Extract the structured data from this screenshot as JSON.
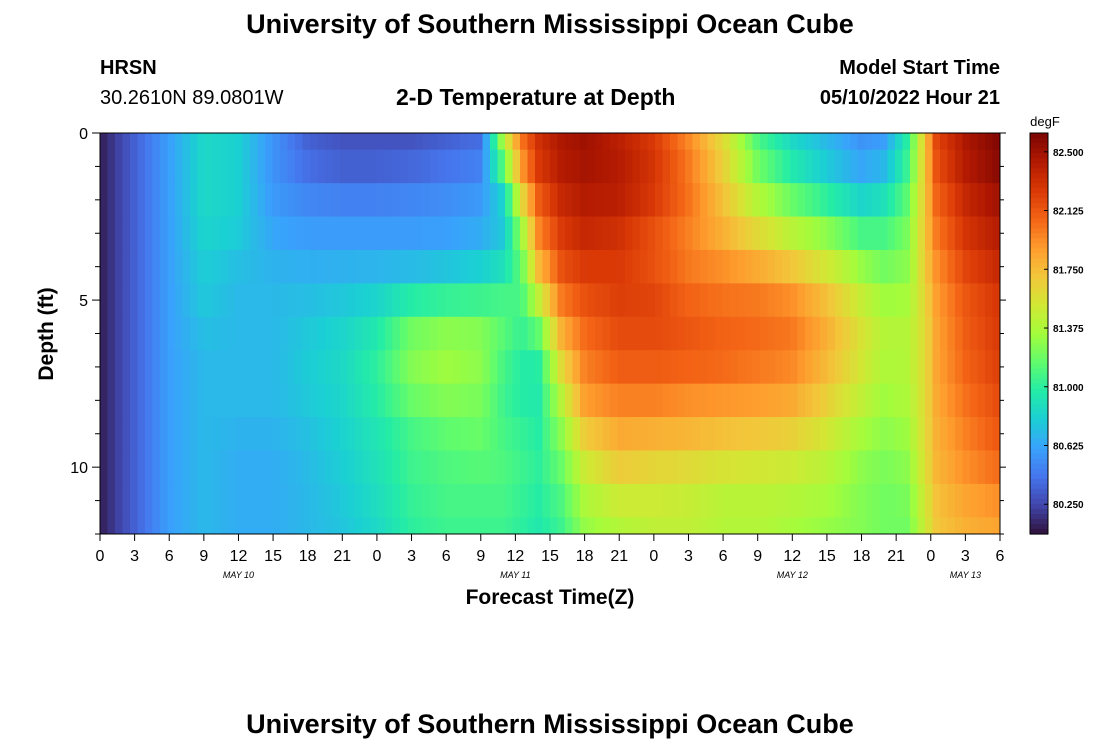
{
  "header": {
    "title": "University of Southern Mississippi Ocean Cube",
    "station": "HRSN",
    "coords": "30.2610N  89.0801W",
    "plot_title": "2-D Temperature at Depth",
    "model_start_label": "Model Start Time",
    "model_start_value": "05/10/2022 Hour 21"
  },
  "footer": {
    "title": "University of Southern Mississippi Ocean Cube"
  },
  "colors": {
    "scale": [
      "#30123b",
      "#4145ab",
      "#4675ed",
      "#39a2fc",
      "#1bcfd4",
      "#24eca6",
      "#61fc6c",
      "#a4fc3b",
      "#d1e834",
      "#f3c63a",
      "#fe9b2d",
      "#f36315",
      "#d93806",
      "#b11901",
      "#7a0402"
    ]
  },
  "chart_data": {
    "type": "heatmap",
    "xlabel": "Forecast Time(Z)",
    "ylabel": "Depth (ft)",
    "x_range_hours": [
      0,
      78
    ],
    "y_range_ft": [
      0,
      12
    ],
    "x_ticks": [
      "0",
      "3",
      "6",
      "9",
      "12",
      "15",
      "18",
      "21",
      "0",
      "3",
      "6",
      "9",
      "12",
      "15",
      "18",
      "21",
      "0",
      "3",
      "6",
      "9",
      "12",
      "15",
      "18",
      "21",
      "0",
      "3",
      "6"
    ],
    "y_ticks": [
      {
        "value": 0,
        "label": "0"
      },
      {
        "value": 5,
        "label": "5"
      },
      {
        "value": 10,
        "label": "10"
      }
    ],
    "date_labels": [
      {
        "hour": 12,
        "label": "MAY 10"
      },
      {
        "hour": 36,
        "label": "MAY 11"
      },
      {
        "hour": 60,
        "label": "MAY 12"
      },
      {
        "hour": 75,
        "label": "MAY 13"
      }
    ],
    "colorbar": {
      "unit": "degF",
      "min": 80.06,
      "max": 82.62,
      "ticks": [
        "82.500",
        "82.125",
        "81.750",
        "81.375",
        "81.000",
        "80.625",
        "80.250"
      ]
    },
    "grid": false,
    "depth_levels_ft": [
      0.0,
      0.5,
      1.5,
      2.5,
      3.5,
      4.5,
      5.5,
      6.5,
      7.5,
      8.5,
      9.5,
      10.5,
      11.5,
      12.0
    ],
    "profiles": [
      {
        "hour": 0,
        "values": [
          80.1,
          80.1,
          80.1,
          80.1,
          80.1,
          80.1,
          80.1,
          80.1,
          80.1,
          80.1,
          80.1,
          80.1,
          80.1,
          80.1
        ]
      },
      {
        "hour": 3,
        "values": [
          80.35,
          80.35,
          80.35,
          80.35,
          80.35,
          80.35,
          80.35,
          80.35,
          80.35,
          80.35,
          80.35,
          80.35,
          80.35,
          80.35
        ]
      },
      {
        "hour": 6,
        "values": [
          80.6,
          80.6,
          80.6,
          80.6,
          80.6,
          80.6,
          80.6,
          80.6,
          80.6,
          80.6,
          80.6,
          80.6,
          80.6,
          80.6
        ]
      },
      {
        "hour": 9,
        "values": [
          80.85,
          80.85,
          80.85,
          80.85,
          80.8,
          80.78,
          80.75,
          80.7,
          80.7,
          80.7,
          80.7,
          80.7,
          80.7,
          80.7
        ]
      },
      {
        "hour": 12,
        "values": [
          80.8,
          80.8,
          80.8,
          80.8,
          80.75,
          80.7,
          80.7,
          80.7,
          80.7,
          80.7,
          80.65,
          80.65,
          80.65,
          80.65
        ]
      },
      {
        "hour": 15,
        "values": [
          80.55,
          80.55,
          80.55,
          80.6,
          80.65,
          80.7,
          80.7,
          80.7,
          80.7,
          80.7,
          80.65,
          80.65,
          80.65,
          80.65
        ]
      },
      {
        "hour": 18,
        "values": [
          80.35,
          80.35,
          80.45,
          80.55,
          80.62,
          80.7,
          80.75,
          80.78,
          80.78,
          80.75,
          80.72,
          80.7,
          80.7,
          80.7
        ]
      },
      {
        "hour": 21,
        "values": [
          80.3,
          80.3,
          80.4,
          80.55,
          80.62,
          80.72,
          80.8,
          80.85,
          80.85,
          80.82,
          80.8,
          80.78,
          80.75,
          80.75
        ]
      },
      {
        "hour": 24,
        "values": [
          80.3,
          80.3,
          80.4,
          80.55,
          80.62,
          80.75,
          80.9,
          81.0,
          81.0,
          80.95,
          80.9,
          80.9,
          80.85,
          80.85
        ]
      },
      {
        "hour": 27,
        "values": [
          80.3,
          80.3,
          80.45,
          80.55,
          80.62,
          80.8,
          81.15,
          81.25,
          81.25,
          81.1,
          81.05,
          81.05,
          81.0,
          81.0
        ]
      },
      {
        "hour": 30,
        "values": [
          80.35,
          80.35,
          80.5,
          80.55,
          80.65,
          80.85,
          81.2,
          81.35,
          81.3,
          81.2,
          81.1,
          81.1,
          81.05,
          81.05
        ]
      },
      {
        "hour": 33,
        "values": [
          80.4,
          80.4,
          80.55,
          80.6,
          80.7,
          80.9,
          81.2,
          81.3,
          81.25,
          81.2,
          81.15,
          81.1,
          81.05,
          81.05
        ]
      },
      {
        "hour": 35,
        "values": [
          81.4,
          81.4,
          80.9,
          80.75,
          80.8,
          81.0,
          81.15,
          81.1,
          81.05,
          81.05,
          81.1,
          81.1,
          81.05,
          81.05
        ]
      },
      {
        "hour": 36.5,
        "values": [
          82.0,
          82.0,
          81.75,
          81.4,
          81.2,
          81.1,
          81.05,
          81.0,
          80.95,
          81.0,
          81.05,
          81.05,
          81.0,
          81.0
        ]
      },
      {
        "hour": 38,
        "values": [
          82.3,
          82.3,
          82.2,
          82.0,
          81.9,
          81.6,
          81.3,
          81.0,
          80.95,
          80.95,
          81.0,
          81.0,
          80.95,
          80.95
        ]
      },
      {
        "hour": 40,
        "values": [
          82.45,
          82.45,
          82.4,
          82.3,
          82.2,
          82.1,
          81.9,
          81.7,
          81.5,
          81.35,
          81.2,
          81.15,
          81.05,
          81.05
        ]
      },
      {
        "hour": 42,
        "values": [
          82.5,
          82.5,
          82.45,
          82.4,
          82.3,
          82.2,
          82.1,
          82.0,
          81.95,
          81.8,
          81.55,
          81.45,
          81.3,
          81.3
        ]
      },
      {
        "hour": 45,
        "values": [
          82.4,
          82.4,
          82.45,
          82.35,
          82.25,
          82.25,
          82.2,
          82.15,
          82.05,
          81.9,
          81.75,
          81.6,
          81.4,
          81.4
        ]
      },
      {
        "hour": 48,
        "values": [
          82.25,
          82.25,
          82.3,
          82.2,
          82.1,
          82.2,
          82.2,
          82.15,
          82.05,
          81.9,
          81.7,
          81.55,
          81.45,
          81.45
        ]
      },
      {
        "hour": 51,
        "values": [
          81.95,
          81.95,
          82.05,
          82.0,
          81.95,
          82.05,
          82.1,
          82.15,
          82.0,
          81.85,
          81.7,
          81.5,
          81.45,
          81.45
        ]
      },
      {
        "hour": 54,
        "values": [
          81.6,
          81.6,
          81.7,
          81.75,
          81.85,
          82.0,
          82.05,
          82.1,
          82.0,
          81.8,
          81.65,
          81.45,
          81.4,
          81.4
        ]
      },
      {
        "hour": 57,
        "values": [
          81.1,
          81.1,
          81.3,
          81.5,
          81.7,
          81.95,
          82.05,
          82.05,
          81.95,
          81.8,
          81.6,
          81.45,
          81.4,
          81.4
        ]
      },
      {
        "hour": 60,
        "values": [
          80.85,
          80.85,
          81.05,
          81.3,
          81.55,
          81.85,
          82.0,
          82.0,
          81.9,
          81.75,
          81.55,
          81.45,
          81.35,
          81.35
        ]
      },
      {
        "hour": 63,
        "values": [
          80.7,
          80.7,
          80.85,
          81.15,
          81.4,
          81.65,
          81.8,
          81.8,
          81.7,
          81.6,
          81.45,
          81.4,
          81.3,
          81.3
        ]
      },
      {
        "hour": 66,
        "values": [
          80.55,
          80.55,
          80.7,
          80.95,
          81.2,
          81.4,
          81.55,
          81.55,
          81.5,
          81.4,
          81.3,
          81.25,
          81.25,
          81.25
        ]
      },
      {
        "hour": 68,
        "values": [
          80.6,
          80.6,
          80.8,
          81.0,
          81.15,
          81.25,
          81.4,
          81.4,
          81.35,
          81.3,
          81.25,
          81.2,
          81.2,
          81.2
        ]
      },
      {
        "hour": 70,
        "values": [
          81.0,
          81.0,
          81.1,
          81.2,
          81.25,
          81.3,
          81.4,
          81.4,
          81.4,
          81.35,
          81.3,
          81.25,
          81.2,
          81.2
        ]
      },
      {
        "hour": 71.5,
        "values": [
          81.7,
          81.7,
          81.7,
          81.7,
          81.7,
          81.65,
          81.6,
          81.6,
          81.6,
          81.6,
          81.6,
          81.55,
          81.5,
          81.5
        ]
      },
      {
        "hour": 72.5,
        "values": [
          82.2,
          82.2,
          82.1,
          82.05,
          81.95,
          81.9,
          81.85,
          81.85,
          81.85,
          81.8,
          81.8,
          81.75,
          81.7,
          81.7
        ]
      },
      {
        "hour": 75,
        "values": [
          82.45,
          82.45,
          82.4,
          82.3,
          82.25,
          82.15,
          82.1,
          82.1,
          82.05,
          82.0,
          81.95,
          81.9,
          81.8,
          81.8
        ]
      },
      {
        "hour": 78,
        "values": [
          82.6,
          82.6,
          82.55,
          82.45,
          82.4,
          82.3,
          82.25,
          82.25,
          82.2,
          82.15,
          82.1,
          82.0,
          81.85,
          81.85
        ]
      }
    ]
  }
}
